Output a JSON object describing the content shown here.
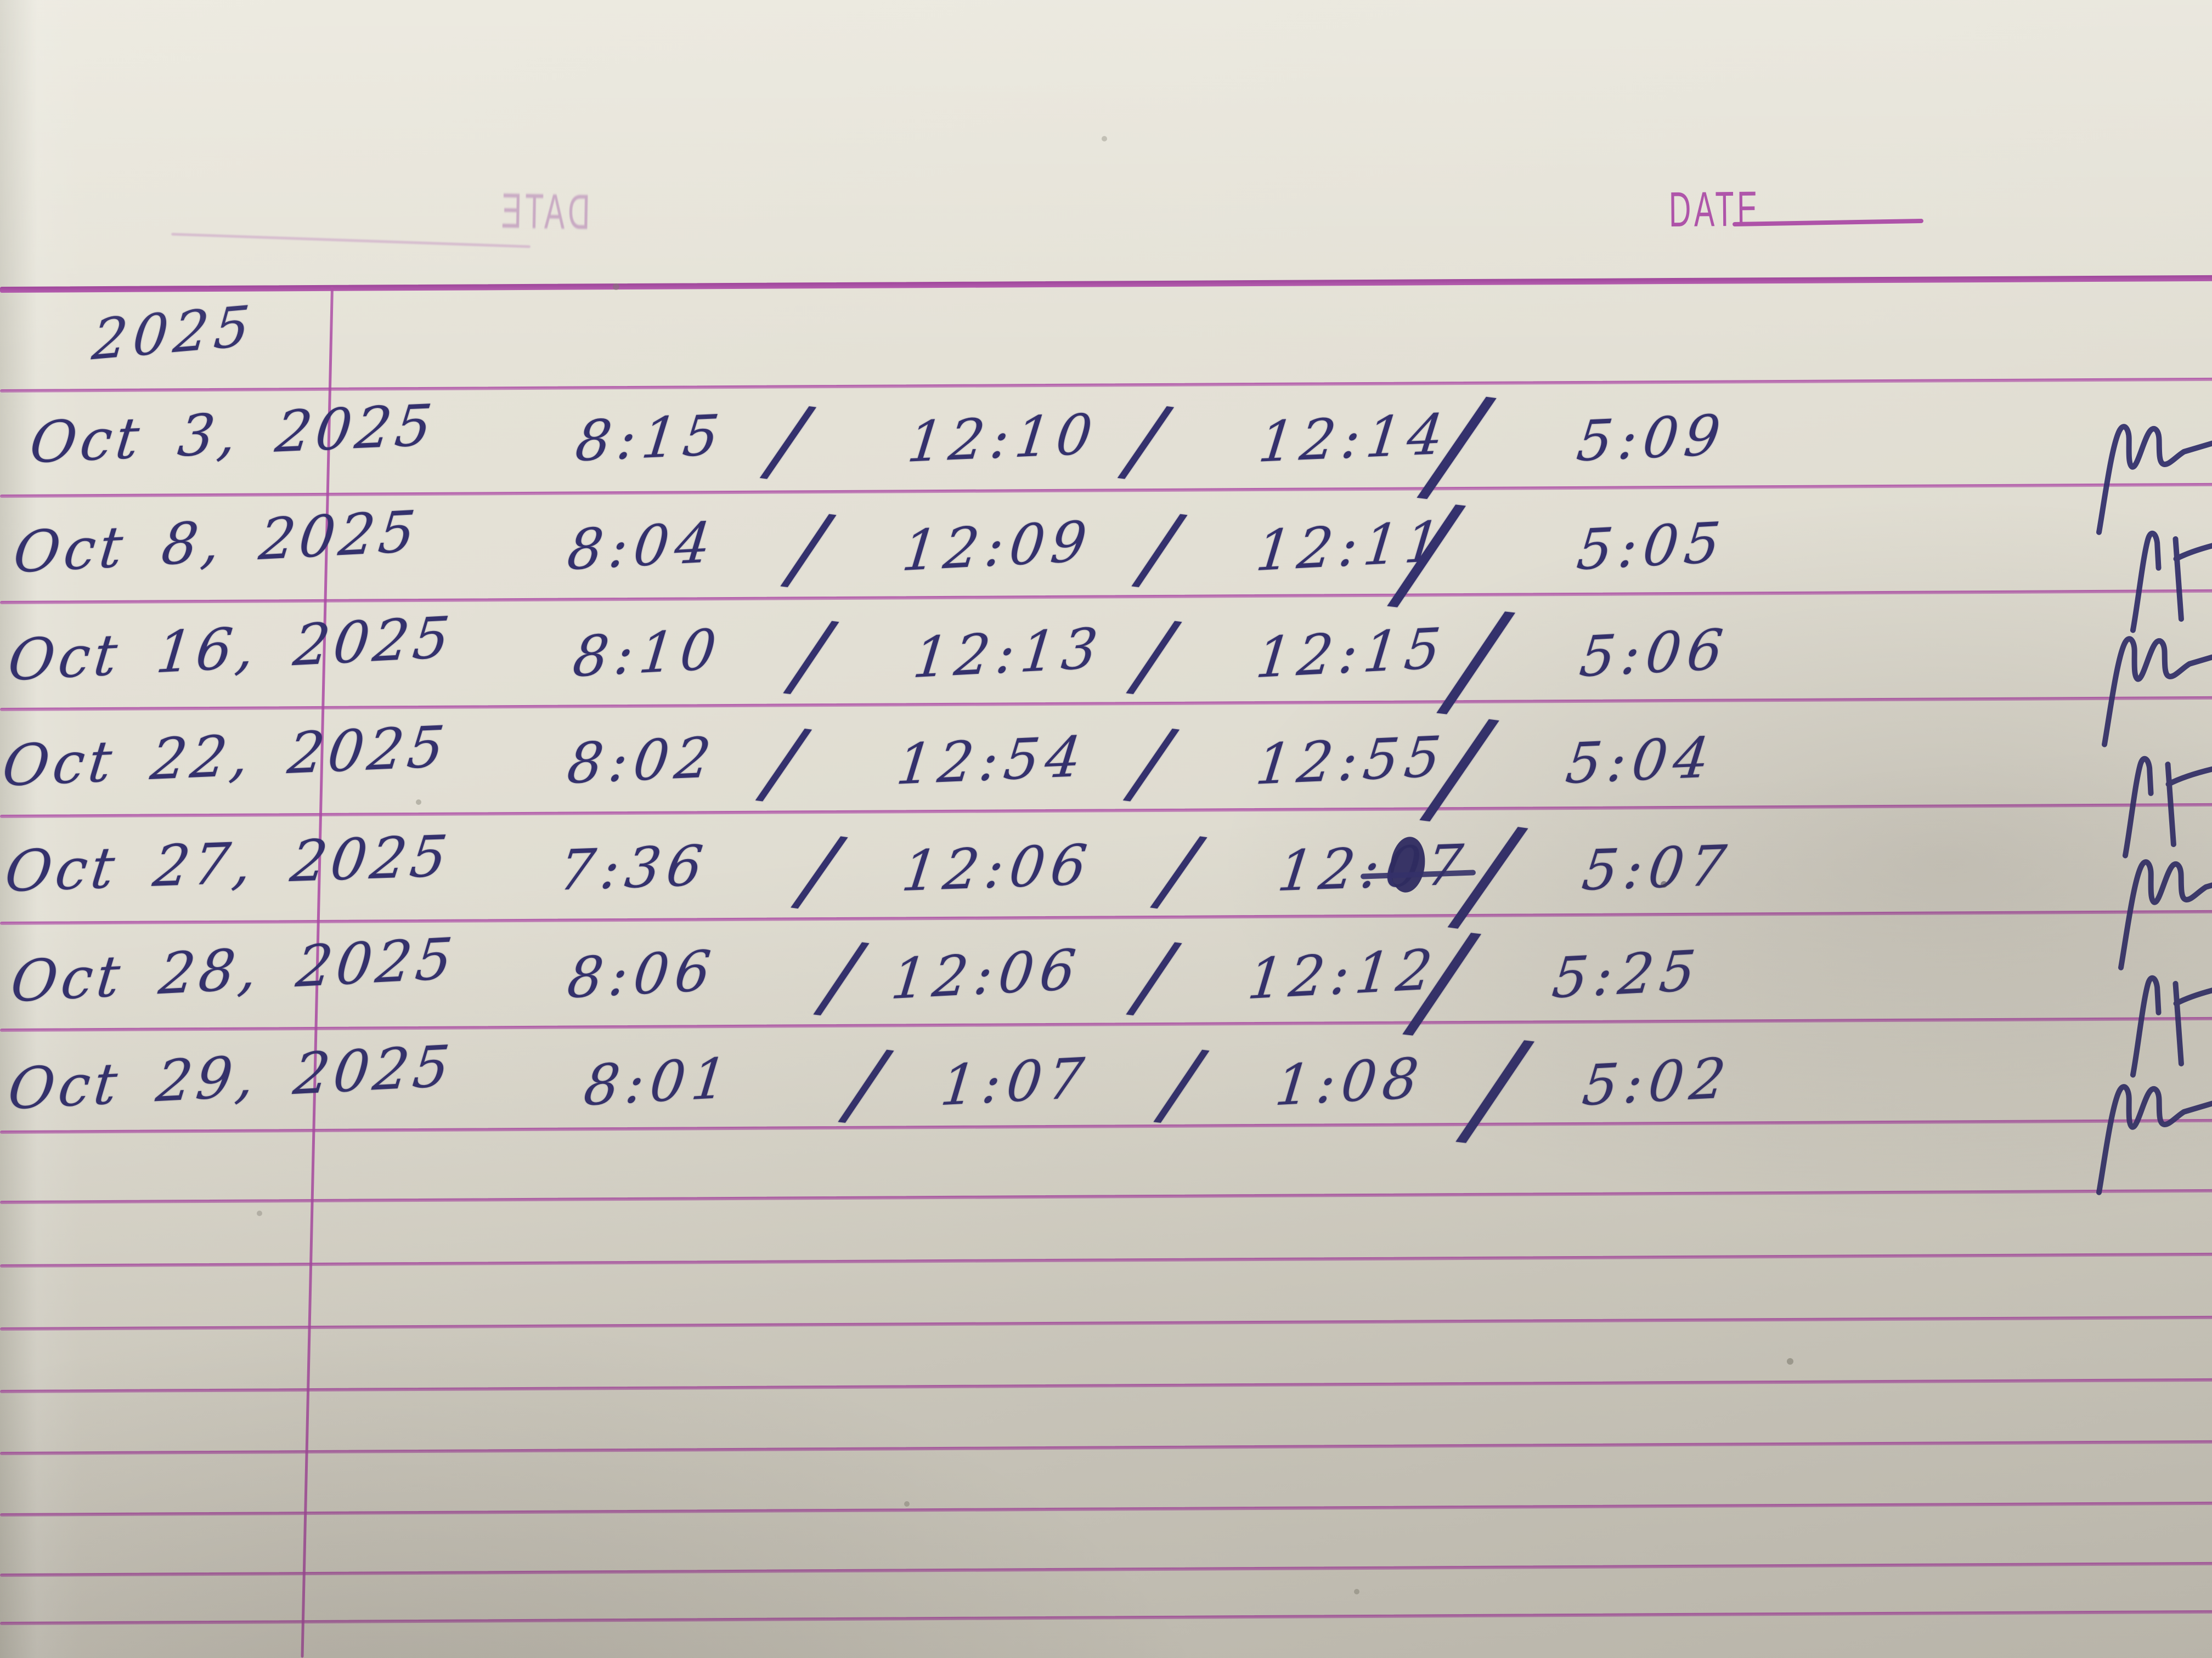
{
  "document_type": "handwritten timesheet on ruled ledger paper",
  "header": {
    "ghost_date_label": "DATE",
    "date_label": "DATE"
  },
  "year_label": "2025",
  "separator_glyph": "/",
  "rows": [
    {
      "date": "Oct 3, 2025",
      "times": [
        "8:15",
        "12:10",
        "12:14",
        "5:09"
      ]
    },
    {
      "date": "Oct 8, 2025",
      "times": [
        "8:04",
        "12:09",
        "12:11",
        "5:05"
      ]
    },
    {
      "date": "Oct 16, 2025",
      "times": [
        "8:10",
        "12:13",
        "12:15",
        "5:06"
      ]
    },
    {
      "date": "Oct 22, 2025",
      "times": [
        "8:02",
        "12:54",
        "12:55",
        "5:04"
      ]
    },
    {
      "date": "Oct 27, 2025",
      "times": [
        "7:36",
        "12:06",
        "12:07",
        "5:07"
      ],
      "blot": true
    },
    {
      "date": "Oct 28, 2025",
      "times": [
        "8:06",
        "12:06",
        "12:12",
        "5:25"
      ]
    },
    {
      "date": "Oct 29, 2025",
      "times": [
        "8:01",
        "1:07",
        "1:08",
        "5:02"
      ]
    }
  ],
  "initials_mark": "M-",
  "colors": {
    "ink": "#34316d",
    "rule_line": "#ad4da6",
    "header_rule": "#993e95",
    "stamp_magenta": "#a643a1",
    "paper": "#e0ddd2"
  }
}
